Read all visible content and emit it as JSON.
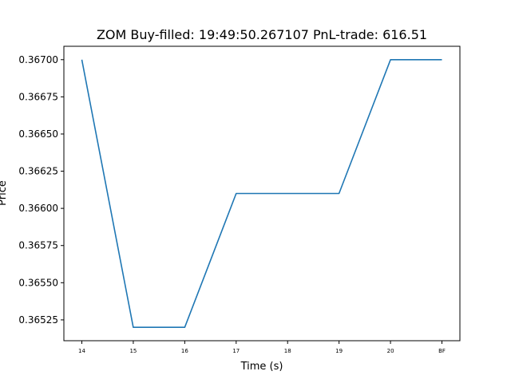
{
  "chart_data": {
    "type": "line",
    "title": "ZOM  Buy-filled:  19:49:50.267107  PnL-trade:  616.51",
    "xlabel": "Time (s)",
    "ylabel": "Price",
    "categories": [
      "14",
      "15",
      "16",
      "17",
      "18",
      "19",
      "20",
      "BF"
    ],
    "series": [
      {
        "values": [
          0.367,
          0.3652,
          0.3652,
          0.3661,
          0.3661,
          0.3661,
          0.367,
          0.367
        ],
        "color": "#1f77b4"
      }
    ],
    "yticks": [
      "0.36525",
      "0.36550",
      "0.36575",
      "0.36600",
      "0.36625",
      "0.36650",
      "0.36675",
      "0.36700"
    ],
    "ylim": [
      0.36511,
      0.36709
    ],
    "grid": false
  }
}
